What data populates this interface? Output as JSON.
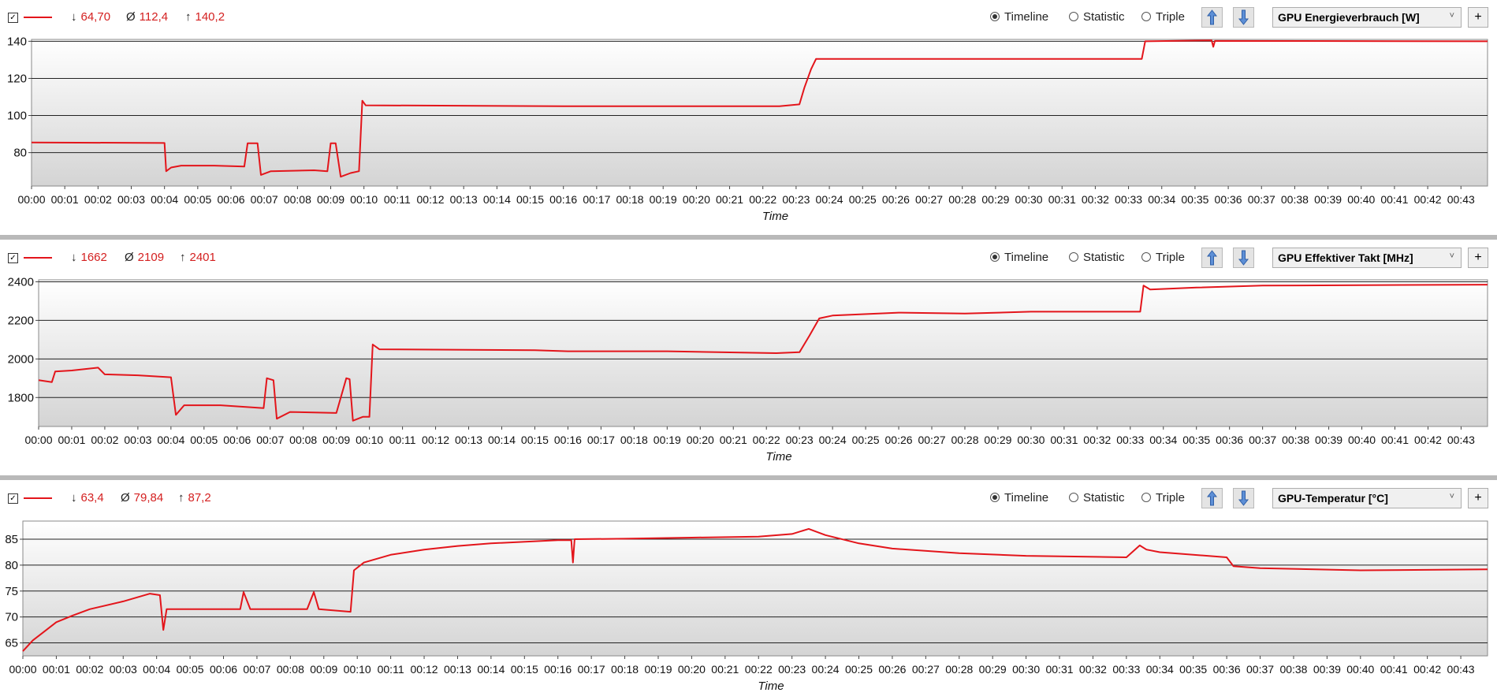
{
  "colors": {
    "series": "#e3151b",
    "grid": "#222222",
    "divider": "#b9b9b9"
  },
  "icons": {
    "checkbox": "checkbox-icon",
    "up": "arrow-up-icon",
    "down": "arrow-down-icon",
    "dropdown": "chevron-down-icon",
    "add": "plus-icon"
  },
  "common": {
    "min_symbol": "↓",
    "avg_symbol": "Ø",
    "max_symbol": "↑",
    "radio_timeline": "Timeline",
    "radio_statistic": "Statistic",
    "radio_triple": "Triple",
    "selected_view": "Timeline",
    "plus": "+",
    "checkbox_mark": "✓",
    "time_ticks": [
      "00:00",
      "00:01",
      "00:02",
      "00:03",
      "00:04",
      "00:05",
      "00:06",
      "00:07",
      "00:08",
      "00:09",
      "00:10",
      "00:11",
      "00:12",
      "00:13",
      "00:14",
      "00:15",
      "00:16",
      "00:17",
      "00:18",
      "00:19",
      "00:20",
      "00:21",
      "00:22",
      "00:23",
      "00:24",
      "00:25",
      "00:26",
      "00:27",
      "00:28",
      "00:29",
      "00:30",
      "00:31",
      "00:32",
      "00:33",
      "00:34",
      "00:35",
      "00:36",
      "00:37",
      "00:38",
      "00:39",
      "00:40",
      "00:41",
      "00:42",
      "00:43"
    ]
  },
  "panels": [
    {
      "min": "64,70",
      "avg": "112,4",
      "max": "140,2",
      "sensor": "GPU Energieverbrauch [W]"
    },
    {
      "min": "1662",
      "avg": "2109",
      "max": "2401",
      "sensor": "GPU Effektiver Takt [MHz]"
    },
    {
      "min": "63,4",
      "avg": "79,84",
      "max": "87,2",
      "sensor": "GPU-Temperatur [°C]"
    }
  ],
  "chart_data": [
    {
      "type": "line",
      "title": "GPU Energieverbrauch [W]",
      "xlabel": "Time",
      "ylabel": "",
      "xlim": [
        0,
        43.8
      ],
      "ylim": [
        62,
        141
      ],
      "yticks": [
        80,
        100,
        120,
        140
      ],
      "grid": true,
      "series": [
        {
          "values": [
            [
              0,
              85.5
            ],
            [
              4.0,
              85.2
            ],
            [
              4.05,
              70
            ],
            [
              4.2,
              72
            ],
            [
              4.5,
              73
            ],
            [
              5.5,
              73
            ],
            [
              6.4,
              72.5
            ],
            [
              6.5,
              85
            ],
            [
              6.8,
              85
            ],
            [
              6.9,
              68
            ],
            [
              7.2,
              70
            ],
            [
              8.5,
              70.5
            ],
            [
              8.9,
              70
            ],
            [
              9.0,
              85
            ],
            [
              9.15,
              85
            ],
            [
              9.3,
              67
            ],
            [
              9.6,
              69
            ],
            [
              9.85,
              70
            ],
            [
              9.95,
              108
            ],
            [
              10.05,
              105.5
            ],
            [
              16.0,
              105
            ],
            [
              22.5,
              105
            ],
            [
              23.1,
              106
            ],
            [
              23.25,
              115
            ],
            [
              23.45,
              125
            ],
            [
              23.6,
              130.5
            ],
            [
              33.4,
              130.5
            ],
            [
              33.5,
              140
            ],
            [
              35.5,
              140.5
            ],
            [
              35.55,
              137
            ],
            [
              35.6,
              140.2
            ],
            [
              43.8,
              140
            ]
          ]
        }
      ]
    },
    {
      "type": "line",
      "title": "GPU Effektiver Takt [MHz]",
      "xlabel": "Time",
      "ylabel": "",
      "xlim": [
        0,
        43.8
      ],
      "ylim": [
        1650,
        2410
      ],
      "yticks": [
        1800,
        2000,
        2200,
        2400
      ],
      "grid": true,
      "series": [
        {
          "values": [
            [
              0,
              1890
            ],
            [
              0.4,
              1880
            ],
            [
              0.5,
              1935
            ],
            [
              1.0,
              1940
            ],
            [
              1.8,
              1955
            ],
            [
              2.0,
              1920
            ],
            [
              3.0,
              1915
            ],
            [
              4.0,
              1905
            ],
            [
              4.15,
              1710
            ],
            [
              4.4,
              1760
            ],
            [
              5.5,
              1760
            ],
            [
              6.8,
              1745
            ],
            [
              6.9,
              1900
            ],
            [
              7.1,
              1890
            ],
            [
              7.2,
              1690
            ],
            [
              7.6,
              1725
            ],
            [
              9.0,
              1720
            ],
            [
              9.3,
              1900
            ],
            [
              9.4,
              1895
            ],
            [
              9.5,
              1680
            ],
            [
              9.8,
              1700
            ],
            [
              10.0,
              1700
            ],
            [
              10.1,
              2075
            ],
            [
              10.3,
              2050
            ],
            [
              15.0,
              2045
            ],
            [
              16.0,
              2040
            ],
            [
              19.0,
              2040
            ],
            [
              22.3,
              2030
            ],
            [
              23.0,
              2035
            ],
            [
              23.3,
              2120
            ],
            [
              23.6,
              2210
            ],
            [
              24.0,
              2225
            ],
            [
              26.0,
              2240
            ],
            [
              28.0,
              2235
            ],
            [
              30.0,
              2245
            ],
            [
              33.3,
              2245
            ],
            [
              33.4,
              2380
            ],
            [
              33.6,
              2360
            ],
            [
              35.0,
              2370
            ],
            [
              37.0,
              2380
            ],
            [
              43.8,
              2385
            ]
          ]
        }
      ]
    },
    {
      "type": "line",
      "title": "GPU-Temperatur [°C]",
      "xlabel": "Time",
      "ylabel": "",
      "xlim": [
        0,
        43.8
      ],
      "ylim": [
        62.5,
        88.5
      ],
      "yticks": [
        65,
        70,
        75,
        80,
        85
      ],
      "grid": true,
      "series": [
        {
          "values": [
            [
              0,
              63.4
            ],
            [
              0.3,
              65.5
            ],
            [
              0.6,
              67
            ],
            [
              1.0,
              69
            ],
            [
              1.5,
              70.3
            ],
            [
              2.0,
              71.5
            ],
            [
              3.0,
              73
            ],
            [
              3.8,
              74.5
            ],
            [
              4.1,
              74.2
            ],
            [
              4.2,
              67.5
            ],
            [
              4.3,
              71.5
            ],
            [
              5.0,
              71.5
            ],
            [
              6.5,
              71.5
            ],
            [
              6.6,
              74.8
            ],
            [
              6.8,
              71.5
            ],
            [
              8.5,
              71.5
            ],
            [
              8.7,
              74.8
            ],
            [
              8.85,
              71.5
            ],
            [
              9.8,
              71
            ],
            [
              9.9,
              79
            ],
            [
              10.2,
              80.5
            ],
            [
              11.0,
              82
            ],
            [
              12.0,
              83
            ],
            [
              13.0,
              83.7
            ],
            [
              14.0,
              84.2
            ],
            [
              16.0,
              84.8
            ],
            [
              16.4,
              84.8
            ],
            [
              16.45,
              80.5
            ],
            [
              16.5,
              85
            ],
            [
              18.0,
              85.1
            ],
            [
              20.0,
              85.3
            ],
            [
              22.0,
              85.5
            ],
            [
              23.0,
              86
            ],
            [
              23.5,
              87
            ],
            [
              24.0,
              85.8
            ],
            [
              25.0,
              84.2
            ],
            [
              26.0,
              83.2
            ],
            [
              28.0,
              82.3
            ],
            [
              30.0,
              81.8
            ],
            [
              33.0,
              81.5
            ],
            [
              33.4,
              83.8
            ],
            [
              33.6,
              83
            ],
            [
              34.0,
              82.5
            ],
            [
              36.0,
              81.5
            ],
            [
              36.2,
              79.8
            ],
            [
              37.0,
              79.4
            ],
            [
              40.0,
              79
            ],
            [
              43.8,
              79.2
            ]
          ]
        }
      ]
    }
  ]
}
